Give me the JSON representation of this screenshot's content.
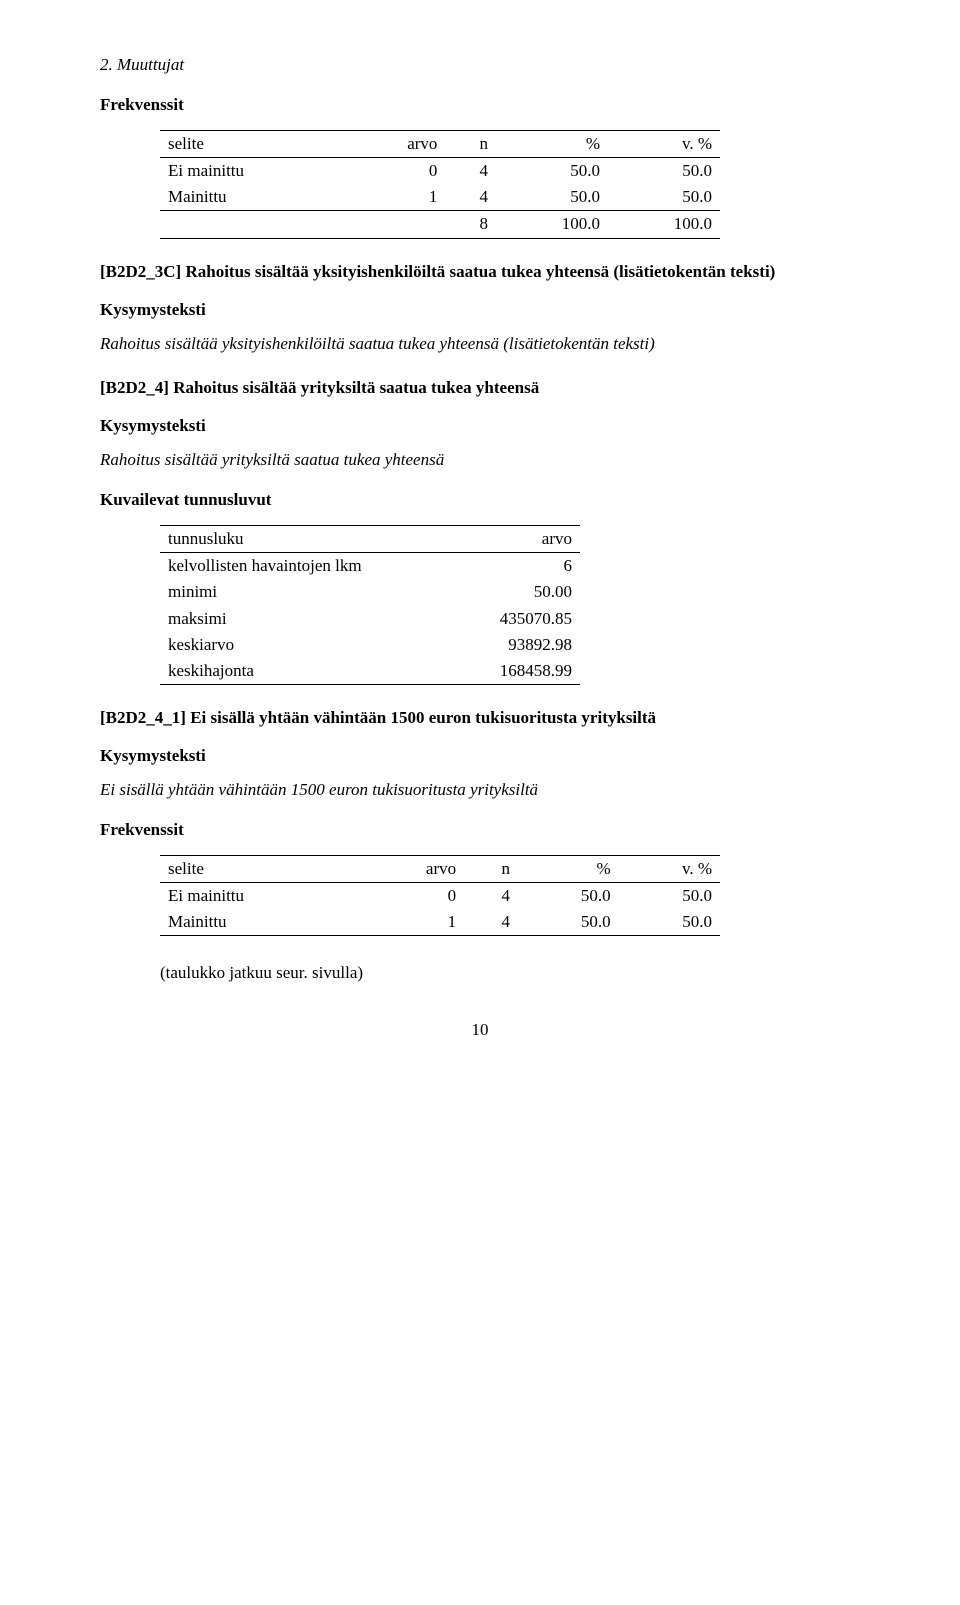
{
  "header_running": "2. Muuttujat",
  "frekvenssit_label": "Frekvenssit",
  "kysymysteksti_label": "Kysymysteksti",
  "kuvailevat_label": "Kuvailevat tunnusluvut",
  "cont_note": "(taulukko jatkuu seur. sivulla)",
  "page_num": "10",
  "table_selite": {
    "cols": [
      "selite",
      "arvo",
      "n",
      "%",
      "v. %"
    ],
    "rows": [
      [
        "Ei mainittu",
        "0",
        "4",
        "50.0",
        "50.0"
      ],
      [
        "Mainittu",
        "1",
        "4",
        "50.0",
        "50.0"
      ]
    ],
    "total": [
      "",
      "",
      "8",
      "100.0",
      "100.0"
    ]
  },
  "b2d2_3c": {
    "title": "[B2D2_3C] Rahoitus sisältää yksityishenkilöiltä saatua tukea yhteensä (lisätietokentän teksti)",
    "kysymys": "Rahoitus sisältää yksityishenkilöiltä saatua tukea yhteensä (lisätietokentän teksti)"
  },
  "b2d2_4": {
    "title": "[B2D2_4] Rahoitus sisältää yrityksiltä saatua tukea yhteensä",
    "kysymys": "Rahoitus sisältää yrityksiltä saatua tukea yhteensä"
  },
  "tunnus_table": {
    "cols": [
      "tunnusluku",
      "arvo"
    ],
    "rows": [
      [
        "kelvollisten havaintojen lkm",
        "6"
      ],
      [
        "minimi",
        "50.00"
      ],
      [
        "maksimi",
        "435070.85"
      ],
      [
        "keskiarvo",
        "93892.98"
      ],
      [
        "keskihajonta",
        "168458.99"
      ]
    ]
  },
  "b2d2_4_1": {
    "title": "[B2D2_4_1] Ei sisällä yhtään vähintään 1500 euron tukisuoritusta yrityksiltä",
    "kysymys": "Ei sisällä yhtään vähintään 1500 euron tukisuoritusta yrityksiltä"
  },
  "table_selite2": {
    "cols": [
      "selite",
      "arvo",
      "n",
      "%",
      "v. %"
    ],
    "rows": [
      [
        "Ei mainittu",
        "0",
        "4",
        "50.0",
        "50.0"
      ],
      [
        "Mainittu",
        "1",
        "4",
        "50.0",
        "50.0"
      ]
    ]
  }
}
